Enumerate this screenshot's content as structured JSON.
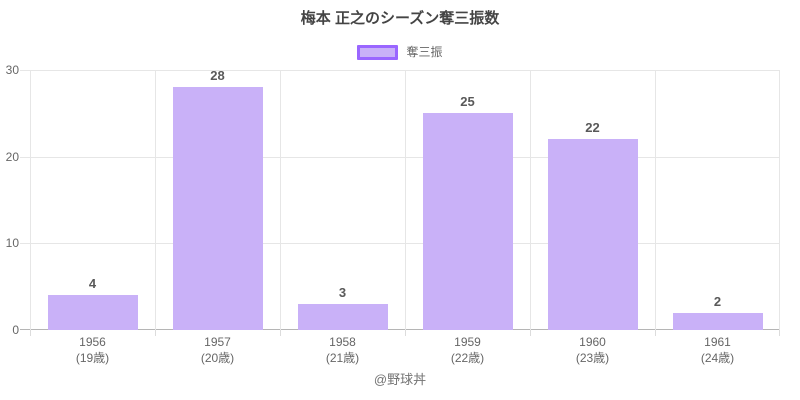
{
  "title": "梅本 正之のシーズン奪三振数",
  "attribution": "@野球丼",
  "colors": {
    "bar_fill": "#c9b1f8",
    "bar_accent": "#9a66ff",
    "grid": "#e6e6e6",
    "axis_line": "#b5b5b5",
    "text": "#666666",
    "title_text": "#444444"
  },
  "chart_data": {
    "type": "bar",
    "title": "梅本 正之のシーズン奪三振数",
    "categories": [
      "1956",
      "1957",
      "1958",
      "1959",
      "1960",
      "1961"
    ],
    "category_sublabels": [
      "(19歳)",
      "(20歳)",
      "(21歳)",
      "(22歳)",
      "(23歳)",
      "(24歳)"
    ],
    "series": [
      {
        "name": "奪三振",
        "values": [
          4,
          28,
          3,
          25,
          22,
          2
        ]
      }
    ],
    "xlabel": "",
    "ylabel": "",
    "ylim": [
      0,
      30
    ],
    "yticks": [
      0,
      10,
      20,
      30
    ],
    "grid": true,
    "legend_position": "top",
    "bar_color": "#c9b1f8",
    "bar_border_color": "#9a66ff",
    "bar_width_frac": 0.72
  }
}
